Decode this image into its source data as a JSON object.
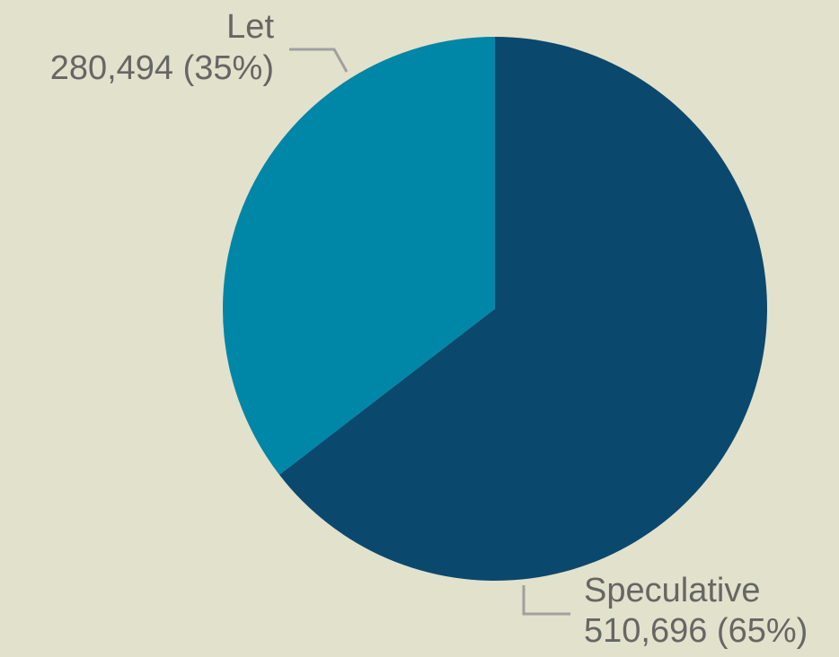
{
  "chart_data": {
    "type": "pie",
    "categories": [
      "Speculative",
      "Let"
    ],
    "values": [
      510696,
      280494
    ],
    "value_labels": [
      "510,696 (65%)",
      "280,494 (35%)"
    ],
    "colors": [
      "#0b486e",
      "#0086a6"
    ]
  }
}
